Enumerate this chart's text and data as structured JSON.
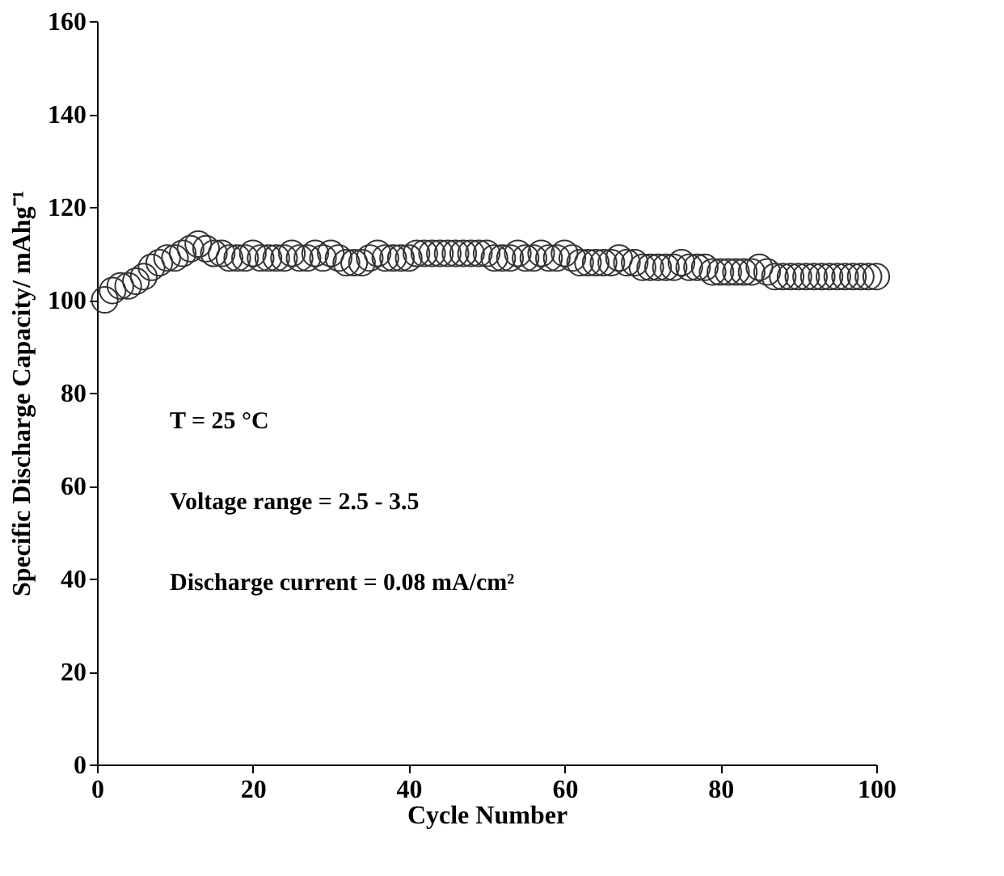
{
  "chart_data": {
    "type": "scatter",
    "xlabel": "Cycle Number",
    "ylabel": "Specific Discharge Capacity/ mAhg⁻¹",
    "x": [
      1,
      2,
      3,
      4,
      5,
      6,
      7,
      8,
      9,
      10,
      11,
      12,
      13,
      14,
      15,
      16,
      17,
      18,
      19,
      20,
      21,
      22,
      23,
      24,
      25,
      26,
      27,
      28,
      29,
      30,
      31,
      32,
      33,
      34,
      35,
      36,
      37,
      38,
      39,
      40,
      41,
      42,
      43,
      44,
      45,
      46,
      47,
      48,
      49,
      50,
      51,
      52,
      53,
      54,
      55,
      56,
      57,
      58,
      59,
      60,
      61,
      62,
      63,
      64,
      65,
      66,
      67,
      68,
      69,
      70,
      71,
      72,
      73,
      74,
      75,
      76,
      77,
      78,
      79,
      80,
      81,
      82,
      83,
      84,
      85,
      86,
      87,
      88,
      89,
      90,
      91,
      92,
      93,
      94,
      95,
      96,
      97,
      98,
      99,
      100
    ],
    "series": [
      {
        "color": "#333333",
        "values": [
          100,
          102,
          103,
          103,
          104,
          105,
          107,
          108,
          109,
          109,
          110,
          111,
          112,
          111,
          110,
          110,
          109,
          109,
          109,
          110,
          109,
          109,
          109,
          109,
          110,
          109,
          109,
          110,
          109,
          110,
          109,
          108,
          108,
          108,
          109,
          110,
          109,
          109,
          109,
          109,
          110,
          110,
          110,
          110,
          110,
          110,
          110,
          110,
          110,
          110,
          109,
          109,
          109,
          110,
          109,
          109,
          110,
          109,
          109,
          110,
          109,
          108,
          108,
          108,
          108,
          108,
          109,
          108,
          108,
          107,
          107,
          107,
          107,
          107,
          108,
          107,
          107,
          107,
          106,
          106,
          106,
          106,
          106,
          106,
          107,
          106,
          105,
          105,
          105,
          105,
          105,
          105,
          105,
          105,
          105,
          105,
          105,
          105,
          105,
          105
        ]
      }
    ],
    "xlim": [
      0,
      100
    ],
    "ylim": [
      0,
      160
    ],
    "xticks": [
      0,
      20,
      40,
      60,
      80,
      100
    ],
    "yticks": [
      0,
      20,
      40,
      60,
      80,
      100,
      120,
      140,
      160
    ],
    "annotations": [
      "T = 25 °C",
      "Voltage range = 2.5 - 3.5",
      "Discharge current  = 0.08 mA/cm²"
    ],
    "grid": false,
    "marker": "circle"
  }
}
